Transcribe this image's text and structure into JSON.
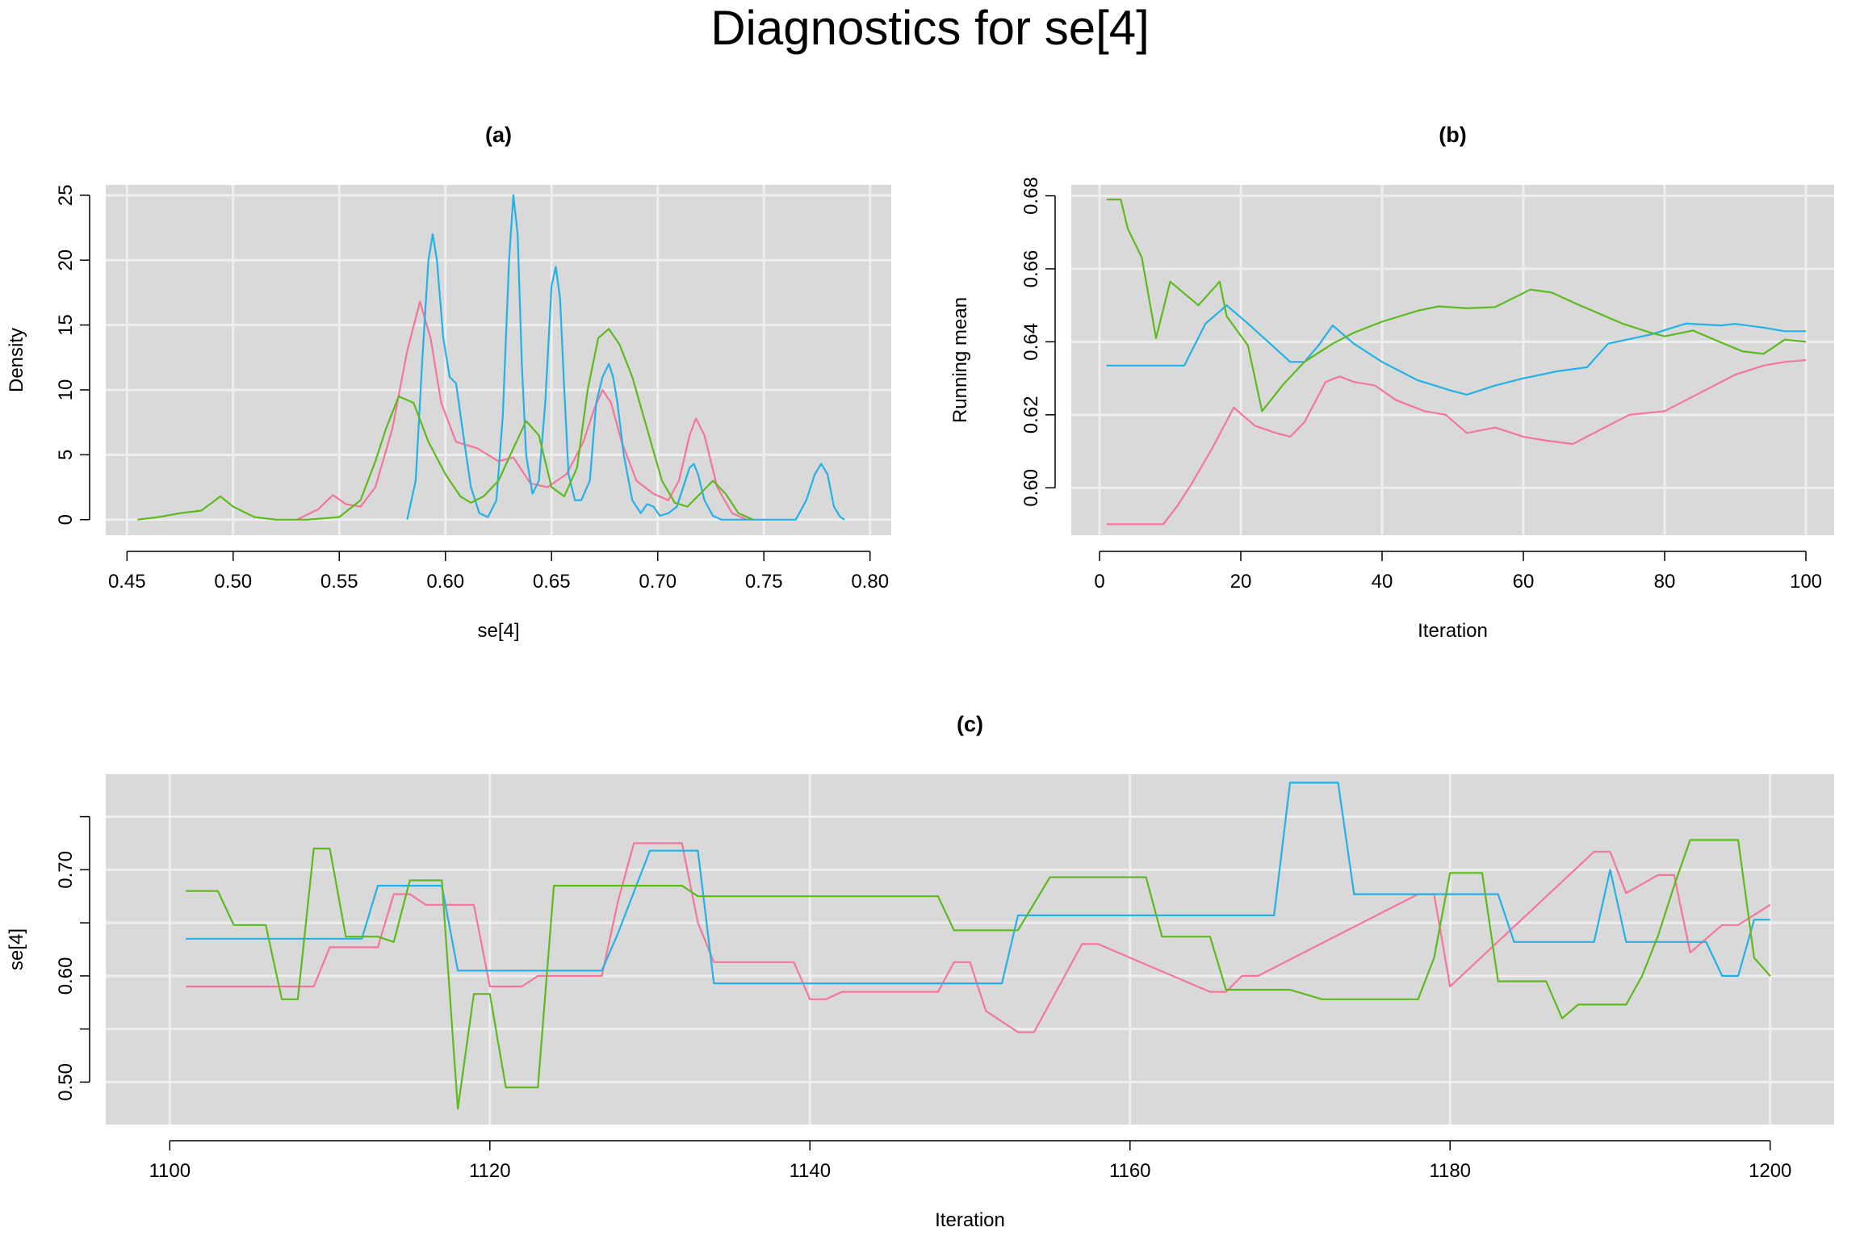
{
  "title": "Diagnostics for se[4]",
  "colors": {
    "chain1": "#F4779A",
    "chain2": "#23B1E8",
    "chain3": "#5DBA1E",
    "panel_bg": "#D9D9D9",
    "grid": "#EEEEEE"
  },
  "chart_data": [
    {
      "type": "line",
      "panel": "(a)",
      "title": "(a)",
      "xlabel": "se[4]",
      "ylabel": "Density",
      "xlim": [
        0.44,
        0.81
      ],
      "ylim": [
        -1.2,
        25.8
      ],
      "xticks": [
        0.45,
        0.5,
        0.55,
        0.6,
        0.65,
        0.7,
        0.75,
        0.8
      ],
      "xtick_labels": [
        "0.45",
        "0.50",
        "0.55",
        "0.60",
        "0.65",
        "0.70",
        "0.75",
        "0.80"
      ],
      "yticks": [
        0,
        5,
        10,
        15,
        20,
        25
      ],
      "ytick_labels": [
        "0",
        "5",
        "10",
        "15",
        "20",
        "25"
      ],
      "grid": true,
      "series": [
        {
          "color": "#F4779A",
          "x": [
            0.53,
            0.54,
            0.547,
            0.553,
            0.56,
            0.567,
            0.575,
            0.582,
            0.588,
            0.593,
            0.598,
            0.605,
            0.615,
            0.625,
            0.632,
            0.64,
            0.648,
            0.657,
            0.665,
            0.67,
            0.674,
            0.678,
            0.683,
            0.69,
            0.698,
            0.705,
            0.71,
            0.715,
            0.718,
            0.722,
            0.728,
            0.735,
            0.742
          ],
          "y": [
            0,
            0.8,
            1.9,
            1.2,
            1.0,
            2.5,
            7,
            13,
            16.8,
            14,
            9,
            6,
            5.5,
            4.5,
            4.8,
            2.8,
            2.5,
            3.5,
            6,
            8.5,
            10,
            9,
            6,
            3,
            2.0,
            1.5,
            3,
            6.5,
            7.8,
            6.5,
            2.5,
            0.5,
            0
          ]
        },
        {
          "color": "#23B1E8",
          "x": [
            0.582,
            0.586,
            0.589,
            0.592,
            0.594,
            0.596,
            0.599,
            0.602,
            0.605,
            0.608,
            0.612,
            0.616,
            0.62,
            0.624,
            0.627,
            0.63,
            0.632,
            0.634,
            0.636,
            0.638,
            0.641,
            0.644,
            0.647,
            0.65,
            0.652,
            0.654,
            0.656,
            0.658,
            0.661,
            0.664,
            0.668,
            0.671,
            0.674,
            0.677,
            0.679,
            0.681,
            0.684,
            0.688,
            0.692,
            0.695,
            0.698,
            0.701,
            0.705,
            0.709,
            0.712,
            0.715,
            0.717,
            0.719,
            0.722,
            0.726,
            0.73,
            0.735,
            0.745,
            0.755,
            0.765,
            0.77,
            0.774,
            0.777,
            0.78,
            0.783,
            0.786,
            0.788
          ],
          "y": [
            0,
            3,
            12,
            20,
            22,
            20,
            14,
            11,
            10.5,
            7,
            2.5,
            0.5,
            0.2,
            1.5,
            8,
            20,
            25,
            22,
            12,
            5,
            2,
            3,
            9,
            18,
            19.5,
            17,
            10,
            3.5,
            1.5,
            1.5,
            3,
            9,
            11,
            12,
            11,
            9,
            5,
            1.5,
            0.5,
            1.2,
            1.0,
            0.3,
            0.5,
            1.0,
            2.5,
            4,
            4.3,
            3.5,
            1.5,
            0.3,
            0,
            0,
            0,
            0,
            0,
            1.5,
            3.5,
            4.3,
            3.5,
            1,
            0.2,
            0
          ]
        },
        {
          "color": "#5DBA1E",
          "x": [
            0.455,
            0.465,
            0.475,
            0.485,
            0.49,
            0.494,
            0.5,
            0.51,
            0.52,
            0.535,
            0.55,
            0.56,
            0.567,
            0.572,
            0.578,
            0.585,
            0.592,
            0.6,
            0.607,
            0.612,
            0.618,
            0.625,
            0.632,
            0.638,
            0.644,
            0.65,
            0.656,
            0.662,
            0.667,
            0.672,
            0.677,
            0.682,
            0.688,
            0.695,
            0.702,
            0.708,
            0.714,
            0.72,
            0.726,
            0.732,
            0.738,
            0.745
          ],
          "y": [
            0,
            0.2,
            0.5,
            0.7,
            1.3,
            1.8,
            1,
            0.2,
            0,
            0,
            0.2,
            1.5,
            4.5,
            7,
            9.5,
            9,
            6,
            3.5,
            1.8,
            1.3,
            1.8,
            3,
            5.5,
            7.6,
            6.5,
            2.5,
            1.8,
            4,
            10,
            14,
            14.7,
            13.5,
            11,
            7,
            3,
            1.3,
            1,
            2,
            3,
            2,
            0.5,
            0
          ]
        }
      ]
    },
    {
      "type": "line",
      "panel": "(b)",
      "title": "(b)",
      "xlabel": "Iteration",
      "ylabel": "Running mean",
      "xlim": [
        -4,
        104
      ],
      "ylim": [
        0.587,
        0.683
      ],
      "xticks": [
        0,
        20,
        40,
        60,
        80,
        100
      ],
      "xtick_labels": [
        "0",
        "20",
        "40",
        "60",
        "80",
        "100"
      ],
      "yticks": [
        0.6,
        0.62,
        0.64,
        0.66,
        0.68
      ],
      "ytick_labels": [
        "0.60",
        "0.62",
        "0.64",
        "0.66",
        "0.68"
      ],
      "grid": true,
      "series": [
        {
          "color": "#F4779A",
          "x": [
            1,
            5,
            9,
            11,
            13,
            16,
            19,
            22,
            25,
            27,
            29,
            32,
            34,
            36,
            39,
            42,
            46,
            49,
            52,
            56,
            60,
            63,
            67,
            70,
            75,
            80,
            85,
            90,
            94,
            97,
            100
          ],
          "y": [
            0.59,
            0.59,
            0.59,
            0.595,
            0.601,
            0.611,
            0.622,
            0.617,
            0.615,
            0.614,
            0.618,
            0.629,
            0.6305,
            0.629,
            0.628,
            0.624,
            0.621,
            0.62,
            0.615,
            0.6165,
            0.614,
            0.613,
            0.612,
            0.615,
            0.62,
            0.621,
            0.626,
            0.631,
            0.6335,
            0.6345,
            0.635
          ]
        },
        {
          "color": "#23B1E8",
          "x": [
            1,
            5,
            10,
            12,
            15,
            18,
            21,
            25,
            27,
            29,
            31,
            33,
            36,
            40,
            45,
            50,
            52,
            56,
            60,
            65,
            69,
            72,
            78,
            83,
            88,
            90,
            94,
            97,
            100
          ],
          "y": [
            0.6335,
            0.6335,
            0.6335,
            0.6335,
            0.645,
            0.65,
            0.645,
            0.638,
            0.6345,
            0.6345,
            0.639,
            0.6445,
            0.6395,
            0.6345,
            0.6295,
            0.6265,
            0.6255,
            0.628,
            0.63,
            0.632,
            0.633,
            0.6395,
            0.642,
            0.645,
            0.6445,
            0.6449,
            0.6439,
            0.6429,
            0.6429
          ]
        },
        {
          "color": "#5DBA1E",
          "x": [
            1,
            3,
            4,
            6,
            8,
            10,
            14,
            17,
            18,
            21,
            23,
            26,
            29,
            33,
            36,
            40,
            45,
            48,
            52,
            56,
            61,
            64,
            68,
            74,
            78,
            80,
            84,
            88,
            91,
            94,
            97,
            100
          ],
          "y": [
            0.679,
            0.679,
            0.671,
            0.663,
            0.641,
            0.6565,
            0.65,
            0.6565,
            0.647,
            0.639,
            0.621,
            0.6283,
            0.6345,
            0.6395,
            0.6425,
            0.6455,
            0.6485,
            0.6497,
            0.6492,
            0.6495,
            0.6543,
            0.6535,
            0.65,
            0.645,
            0.6425,
            0.6415,
            0.6431,
            0.6398,
            0.6374,
            0.6367,
            0.6406,
            0.64
          ]
        }
      ]
    },
    {
      "type": "line",
      "panel": "(c)",
      "title": "(c)",
      "xlabel": "Iteration",
      "ylabel": "se[4]",
      "xlim": [
        1096,
        1204
      ],
      "ylim": [
        0.46,
        0.79
      ],
      "xticks": [
        1100,
        1120,
        1140,
        1160,
        1180,
        1200
      ],
      "xtick_labels": [
        "1100",
        "1120",
        "1140",
        "1160",
        "1180",
        "1200"
      ],
      "yticks": [
        0.5,
        0.6,
        0.7
      ],
      "ytick_labels": [
        "0.50",
        "0.60",
        "0.70"
      ],
      "yticks_unlabeled": [
        0.55,
        0.65,
        0.75
      ],
      "grid": true,
      "series": [
        {
          "color": "#F4779A",
          "x": [
            1101,
            1109,
            1110,
            1113,
            1114,
            1115,
            1116,
            1119,
            1120,
            1122,
            1123,
            1127,
            1128,
            1129,
            1132,
            1133,
            1134,
            1139,
            1140,
            1141,
            1142,
            1148,
            1149,
            1150,
            1151,
            1153,
            1154,
            1157,
            1158,
            1165,
            1166,
            1167,
            1168,
            1178,
            1179,
            1180,
            1189,
            1190,
            1191,
            1193,
            1194,
            1195,
            1197,
            1198,
            1200
          ],
          "y": [
            0.59,
            0.59,
            0.627,
            0.627,
            0.677,
            0.677,
            0.667,
            0.667,
            0.59,
            0.59,
            0.6,
            0.6,
            0.67,
            0.725,
            0.725,
            0.65,
            0.613,
            0.613,
            0.578,
            0.578,
            0.585,
            0.585,
            0.613,
            0.613,
            0.567,
            0.547,
            0.547,
            0.63,
            0.63,
            0.585,
            0.585,
            0.6,
            0.6,
            0.677,
            0.677,
            0.59,
            0.717,
            0.717,
            0.678,
            0.695,
            0.695,
            0.622,
            0.648,
            0.648,
            0.667
          ]
        },
        {
          "color": "#23B1E8",
          "x": [
            1101,
            1112,
            1113,
            1116,
            1117,
            1118,
            1126,
            1127,
            1128,
            1130,
            1133,
            1134,
            1152,
            1153,
            1169,
            1170,
            1173,
            1174,
            1175,
            1183,
            1184,
            1188,
            1189,
            1190,
            1191,
            1196,
            1197,
            1198,
            1199,
            1200
          ],
          "y": [
            0.635,
            0.635,
            0.685,
            0.685,
            0.685,
            0.605,
            0.605,
            0.605,
            0.64,
            0.718,
            0.718,
            0.593,
            0.593,
            0.657,
            0.657,
            0.782,
            0.782,
            0.677,
            0.677,
            0.677,
            0.632,
            0.632,
            0.632,
            0.7,
            0.632,
            0.632,
            0.6,
            0.6,
            0.653,
            0.653
          ]
        },
        {
          "color": "#5DBA1E",
          "x": [
            1101,
            1103,
            1104,
            1106,
            1107,
            1108,
            1109,
            1110,
            1111,
            1113,
            1114,
            1115,
            1117,
            1118,
            1119,
            1120,
            1121,
            1123,
            1124,
            1132,
            1133,
            1145,
            1148,
            1149,
            1152,
            1153,
            1155,
            1158,
            1161,
            1162,
            1165,
            1166,
            1169,
            1170,
            1172,
            1175,
            1178,
            1179,
            1180,
            1182,
            1183,
            1186,
            1187,
            1188,
            1191,
            1192,
            1193,
            1194,
            1195,
            1196,
            1198,
            1199,
            1200
          ],
          "y": [
            0.68,
            0.68,
            0.648,
            0.648,
            0.578,
            0.578,
            0.72,
            0.72,
            0.637,
            0.637,
            0.632,
            0.69,
            0.69,
            0.475,
            0.583,
            0.583,
            0.495,
            0.495,
            0.685,
            0.685,
            0.675,
            0.675,
            0.675,
            0.643,
            0.643,
            0.643,
            0.693,
            0.693,
            0.693,
            0.637,
            0.637,
            0.587,
            0.587,
            0.587,
            0.578,
            0.578,
            0.578,
            0.617,
            0.697,
            0.697,
            0.595,
            0.595,
            0.56,
            0.573,
            0.573,
            0.6,
            0.638,
            0.685,
            0.728,
            0.728,
            0.728,
            0.617,
            0.6
          ]
        }
      ]
    }
  ]
}
